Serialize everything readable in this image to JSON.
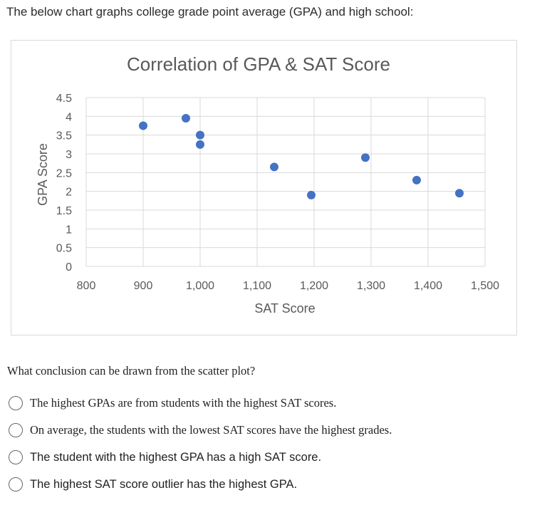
{
  "intro_text": "The below chart graphs college grade point average (GPA) and high school:",
  "chart_data": {
    "type": "scatter",
    "title": "Correlation of GPA & SAT Score",
    "xlabel": "SAT Score",
    "ylabel": "GPA Score",
    "xlim": [
      800,
      1500
    ],
    "ylim": [
      0,
      4.5
    ],
    "x_ticks": [
      "800",
      "900",
      "1,000",
      "1,100",
      "1,200",
      "1,300",
      "1,400",
      "1,500"
    ],
    "y_ticks": [
      "0",
      "0.5",
      "1",
      "1.5",
      "2",
      "2.5",
      "3",
      "3.5",
      "4",
      "4.5"
    ],
    "grid": true,
    "color": "#4472c4",
    "points": [
      {
        "x": 900,
        "y": 3.75
      },
      {
        "x": 975,
        "y": 3.95
      },
      {
        "x": 1000,
        "y": 3.5
      },
      {
        "x": 1000,
        "y": 3.25
      },
      {
        "x": 1130,
        "y": 2.65
      },
      {
        "x": 1195,
        "y": 1.9
      },
      {
        "x": 1290,
        "y": 2.9
      },
      {
        "x": 1380,
        "y": 2.3
      },
      {
        "x": 1455,
        "y": 1.95
      }
    ]
  },
  "question": "What conclusion can be drawn from the scatter plot?",
  "options": [
    {
      "label": "The highest GPAs are from students with the highest SAT scores."
    },
    {
      "label": "On average, the students with the lowest SAT scores have the highest grades."
    },
    {
      "label": "The student with the highest GPA has a high SAT score."
    },
    {
      "label": "The highest SAT score outlier has the highest GPA."
    }
  ]
}
